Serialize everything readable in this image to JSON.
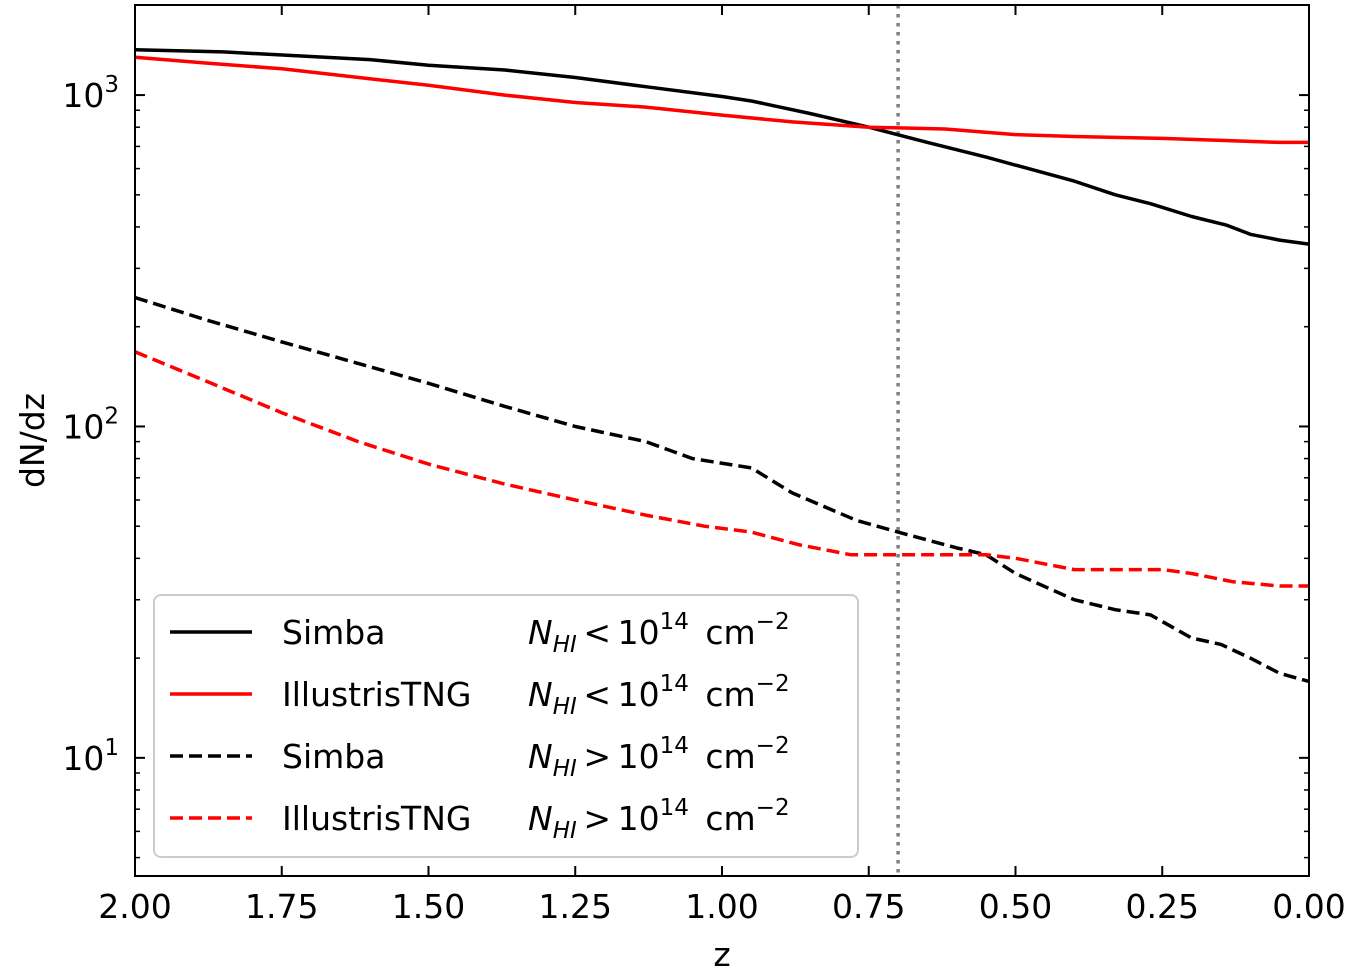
{
  "chart_data": {
    "type": "line",
    "title": "",
    "xlabel": "z",
    "ylabel": "dN/dz",
    "xlim": [
      2.0,
      0.0
    ],
    "x_reversed": true,
    "ylim": [
      4.4,
      1870
    ],
    "yscale": "log",
    "grid": false,
    "legend_position": "lower-left",
    "x_ticks": [
      2.0,
      1.75,
      1.5,
      1.25,
      1.0,
      0.75,
      0.5,
      0.25,
      0.0
    ],
    "x_tick_labels": [
      "2.00",
      "1.75",
      "1.50",
      "1.25",
      "1.00",
      "0.75",
      "0.50",
      "0.25",
      "0.00"
    ],
    "y_ticks": [
      {
        "value": 10,
        "base": "10",
        "exp": "1"
      },
      {
        "value": 100,
        "base": "10",
        "exp": "2"
      },
      {
        "value": 1000,
        "base": "10",
        "exp": "3"
      }
    ],
    "vline": {
      "x": 0.7,
      "color": "#808080",
      "style": "dotted"
    },
    "series": [
      {
        "name": "Simba",
        "condition": {
          "sym": "N",
          "sub": "HI",
          "op": "<",
          "base": "10",
          "exp": "14",
          "unit": "cm",
          "unit_exp": "−2"
        },
        "color": "#000000",
        "dash": "solid",
        "points": [
          [
            2.0,
            1370
          ],
          [
            1.85,
            1350
          ],
          [
            1.6,
            1280
          ],
          [
            1.5,
            1230
          ],
          [
            1.37,
            1190
          ],
          [
            1.25,
            1130
          ],
          [
            1.13,
            1060
          ],
          [
            1.0,
            990
          ],
          [
            0.95,
            960
          ],
          [
            0.85,
            880
          ],
          [
            0.75,
            800
          ],
          [
            0.65,
            720
          ],
          [
            0.55,
            650
          ],
          [
            0.4,
            550
          ],
          [
            0.33,
            500
          ],
          [
            0.27,
            470
          ],
          [
            0.2,
            430
          ],
          [
            0.14,
            405
          ],
          [
            0.1,
            380
          ],
          [
            0.05,
            365
          ],
          [
            0.0,
            355
          ]
        ]
      },
      {
        "name": "IllustrisTNG",
        "condition": {
          "sym": "N",
          "sub": "HI",
          "op": "<",
          "base": "10",
          "exp": "14",
          "unit": "cm",
          "unit_exp": "−2"
        },
        "color": "#ff0000",
        "dash": "solid",
        "points": [
          [
            2.0,
            1300
          ],
          [
            1.88,
            1250
          ],
          [
            1.75,
            1200
          ],
          [
            1.6,
            1120
          ],
          [
            1.5,
            1070
          ],
          [
            1.37,
            1000
          ],
          [
            1.25,
            950
          ],
          [
            1.13,
            920
          ],
          [
            1.0,
            870
          ],
          [
            0.88,
            830
          ],
          [
            0.75,
            800
          ],
          [
            0.62,
            790
          ],
          [
            0.5,
            760
          ],
          [
            0.4,
            750
          ],
          [
            0.25,
            740
          ],
          [
            0.15,
            730
          ],
          [
            0.05,
            720
          ],
          [
            0.0,
            720
          ]
        ]
      },
      {
        "name": "Simba",
        "condition": {
          "sym": "N",
          "sub": "HI",
          "op": ">",
          "base": "10",
          "exp": "14",
          "unit": "cm",
          "unit_exp": "−2"
        },
        "color": "#000000",
        "dash": "dashed",
        "points": [
          [
            2.0,
            245
          ],
          [
            1.88,
            210
          ],
          [
            1.75,
            180
          ],
          [
            1.62,
            155
          ],
          [
            1.5,
            135
          ],
          [
            1.37,
            115
          ],
          [
            1.25,
            100
          ],
          [
            1.13,
            90
          ],
          [
            1.05,
            80
          ],
          [
            0.95,
            75
          ],
          [
            0.88,
            63
          ],
          [
            0.77,
            52
          ],
          [
            0.7,
            48
          ],
          [
            0.6,
            43
          ],
          [
            0.55,
            41
          ],
          [
            0.5,
            36
          ],
          [
            0.4,
            30
          ],
          [
            0.33,
            28
          ],
          [
            0.27,
            27
          ],
          [
            0.2,
            23
          ],
          [
            0.15,
            22
          ],
          [
            0.1,
            20
          ],
          [
            0.05,
            18
          ],
          [
            0.0,
            17
          ]
        ]
      },
      {
        "name": "IllustrisTNG",
        "condition": {
          "sym": "N",
          "sub": "HI",
          "op": ">",
          "base": "10",
          "exp": "14",
          "unit": "cm",
          "unit_exp": "−2"
        },
        "color": "#ff0000",
        "dash": "dashed",
        "points": [
          [
            2.0,
            168
          ],
          [
            1.87,
            135
          ],
          [
            1.75,
            110
          ],
          [
            1.62,
            90
          ],
          [
            1.5,
            77
          ],
          [
            1.37,
            67
          ],
          [
            1.25,
            60
          ],
          [
            1.13,
            54
          ],
          [
            1.03,
            50
          ],
          [
            0.95,
            48
          ],
          [
            0.87,
            44
          ],
          [
            0.78,
            41
          ],
          [
            0.7,
            41
          ],
          [
            0.6,
            41
          ],
          [
            0.55,
            41
          ],
          [
            0.5,
            40
          ],
          [
            0.4,
            37
          ],
          [
            0.33,
            37
          ],
          [
            0.25,
            37
          ],
          [
            0.2,
            36
          ],
          [
            0.13,
            34
          ],
          [
            0.05,
            33
          ],
          [
            0.0,
            33
          ]
        ]
      }
    ]
  }
}
